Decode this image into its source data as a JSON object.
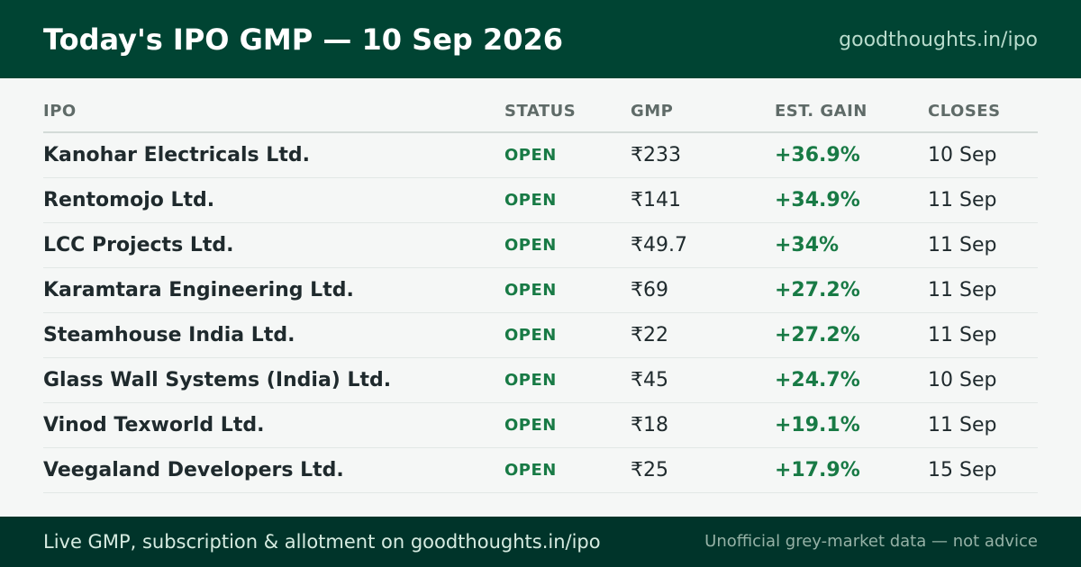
{
  "header": {
    "title": "Today's IPO GMP — 10 Sep 2026",
    "site": "goodthoughts.in/ipo"
  },
  "table": {
    "columns": [
      "IPO",
      "STATUS",
      "GMP",
      "EST. GAIN",
      "CLOSES"
    ],
    "rows": [
      {
        "name": "Kanohar Electricals Ltd.",
        "status": "OPEN",
        "gmp": "₹233",
        "gain": "+36.9%",
        "closes": "10 Sep"
      },
      {
        "name": "Rentomojo Ltd.",
        "status": "OPEN",
        "gmp": "₹141",
        "gain": "+34.9%",
        "closes": "11 Sep"
      },
      {
        "name": "LCC Projects Ltd.",
        "status": "OPEN",
        "gmp": "₹49.7",
        "gain": "+34%",
        "closes": "11 Sep"
      },
      {
        "name": "Karamtara Engineering Ltd.",
        "status": "OPEN",
        "gmp": "₹69",
        "gain": "+27.2%",
        "closes": "11 Sep"
      },
      {
        "name": "Steamhouse India Ltd.",
        "status": "OPEN",
        "gmp": "₹22",
        "gain": "+27.2%",
        "closes": "11 Sep"
      },
      {
        "name": "Glass Wall Systems (India) Ltd.",
        "status": "OPEN",
        "gmp": "₹45",
        "gain": "+24.7%",
        "closes": "10 Sep"
      },
      {
        "name": "Vinod Texworld Ltd.",
        "status": "OPEN",
        "gmp": "₹18",
        "gain": "+19.1%",
        "closes": "11 Sep"
      },
      {
        "name": "Veegaland Developers Ltd.",
        "status": "OPEN",
        "gmp": "₹25",
        "gain": "+17.9%",
        "closes": "15 Sep"
      }
    ]
  },
  "footer": {
    "cta": "Live GMP, subscription & allotment on goodthoughts.in/ipo",
    "disclaimer": "Unofficial grey-market data — not advice"
  },
  "colors": {
    "header_bg": "#004433",
    "footer_bg": "#00342a",
    "accent_green": "#187a45",
    "page_bg": "#f5f7f6"
  }
}
